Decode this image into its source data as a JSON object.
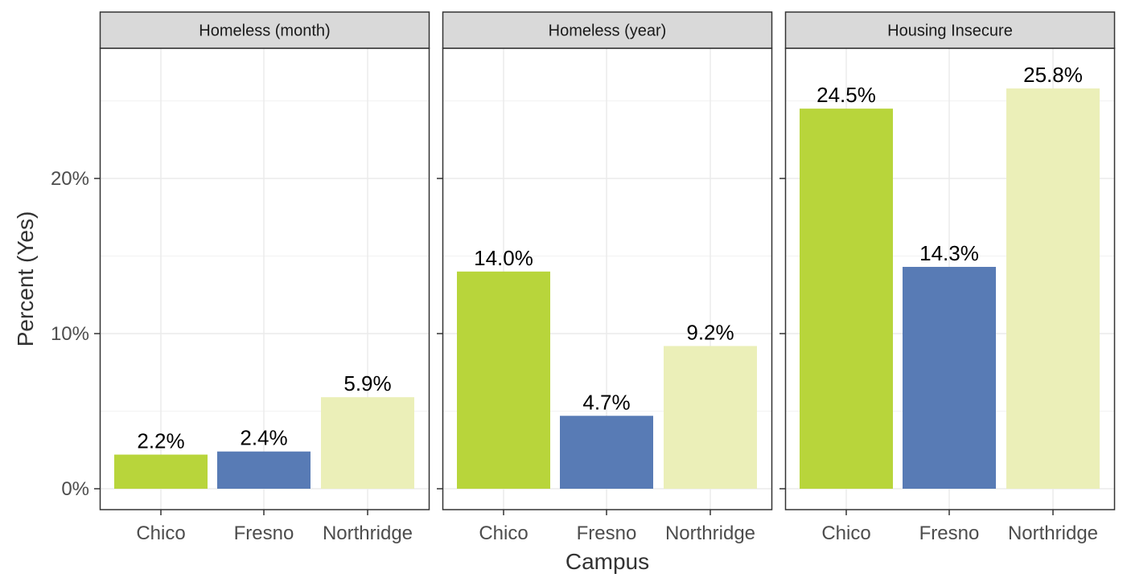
{
  "chart_data": {
    "type": "bar",
    "xlabel": "Campus",
    "ylabel": "Percent (Yes)",
    "ylim": [
      0,
      28.5
    ],
    "yticks": [
      0,
      10,
      20
    ],
    "ytick_labels": [
      "0%",
      "10%",
      "20%"
    ],
    "grid": true,
    "legend": "none",
    "categories": [
      "Chico",
      "Fresno",
      "Northridge"
    ],
    "colors": {
      "Chico": "#b8d53b",
      "Fresno": "#587bb5",
      "Northridge": "#ebefb8"
    },
    "panels": [
      {
        "title": "Homeless (month)",
        "values": [
          2.2,
          2.4,
          5.9
        ],
        "labels": [
          "2.2%",
          "2.4%",
          "5.9%"
        ]
      },
      {
        "title": "Homeless (year)",
        "values": [
          14.0,
          4.7,
          9.2
        ],
        "labels": [
          "14.0%",
          "4.7%",
          "9.2%"
        ]
      },
      {
        "title": "Housing Insecure",
        "values": [
          24.5,
          14.3,
          25.8
        ],
        "labels": [
          "24.5%",
          "14.3%",
          "25.8%"
        ]
      }
    ]
  }
}
